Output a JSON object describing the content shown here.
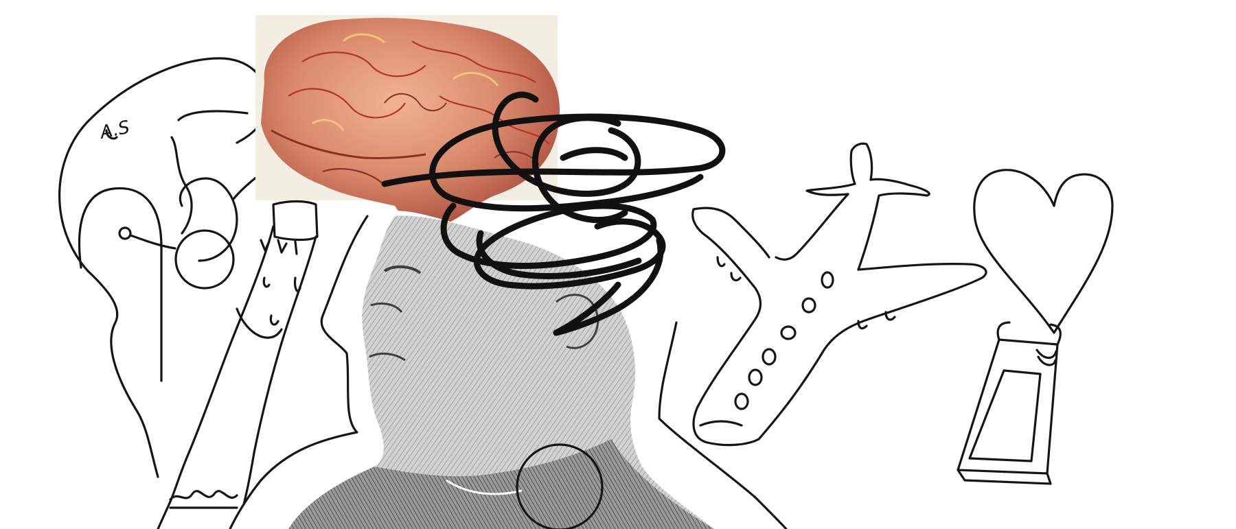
{
  "annotation": {
    "text": "A.S"
  },
  "colors": {
    "ink": "#151515",
    "paper": "#ffffff",
    "brain_base": "#d98a6a",
    "brain_shadow": "#a9493a",
    "brain_vein": "#b3322c",
    "brain_highlight": "#f2c37c",
    "engraving_gray": "#c9c9c9",
    "engraving_dark": "#6d6d6d"
  },
  "icons": {
    "brain": "brain-illustration-icon",
    "head": "engraved-head-icon",
    "scribble": "scribble-icon",
    "airplane": "airplane-icon",
    "heart": "heart-icon",
    "bottle": "bottle-icon",
    "cigarette": "cigarette-icon"
  }
}
